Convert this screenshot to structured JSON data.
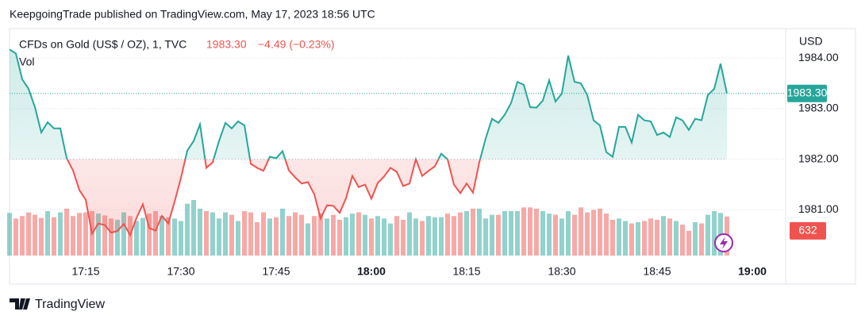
{
  "chart_data": {
    "type": "line",
    "header": "KeepgoingTrade published on TradingView.com, May 17, 2023 18:56 UTC",
    "symbol": "CFDs on Gold (US$ / OZ), 1, TVC",
    "price_label": "1983.30",
    "change_label": "−4.49 (−0.23%)",
    "volume_label": "Vol",
    "currency": "USD",
    "footer": "TradingView",
    "baseline": 1982,
    "up_color": "#26a69a",
    "down_color": "#ef5350",
    "xlim": [
      1023,
      1145.25
    ],
    "xticks": [
      {
        "value": 1035,
        "label": "17:15"
      },
      {
        "value": 1050,
        "label": "17:30"
      },
      {
        "value": 1065,
        "label": "17:45"
      },
      {
        "value": 1080,
        "label": "18:00",
        "bold": true
      },
      {
        "value": 1095,
        "label": "18:15"
      },
      {
        "value": 1110,
        "label": "18:30"
      },
      {
        "value": 1125,
        "label": "18:45"
      },
      {
        "value": 1140,
        "label": "19:00",
        "bold": true
      }
    ],
    "ylim": [
      1980.05,
      1984.52
    ],
    "yticks": [
      {
        "value": 1981,
        "label": "1981.00"
      },
      {
        "value": 1982,
        "label": "1982.00"
      },
      {
        "value": 1983,
        "label": "1983.00"
      },
      {
        "value": 1984,
        "label": "1984.00"
      }
    ],
    "x": [
      1023,
      1024,
      1025,
      1026,
      1027,
      1028,
      1029,
      1030,
      1031,
      1032,
      1033,
      1034,
      1035,
      1036,
      1037,
      1038,
      1039,
      1040,
      1041,
      1042,
      1043,
      1044,
      1045,
      1046,
      1047,
      1048,
      1049,
      1050,
      1051,
      1052,
      1053,
      1054,
      1055,
      1056,
      1057,
      1058,
      1059,
      1060,
      1061,
      1062,
      1063,
      1064,
      1065,
      1066,
      1067,
      1068,
      1069,
      1070,
      1071,
      1072,
      1073,
      1074,
      1075,
      1076,
      1077,
      1078,
      1079,
      1080,
      1081,
      1082,
      1083,
      1084,
      1085,
      1086,
      1087,
      1088,
      1089,
      1090,
      1091,
      1092,
      1093,
      1094,
      1095,
      1096,
      1097,
      1098,
      1099,
      1100,
      1101,
      1102,
      1103,
      1104,
      1105,
      1106,
      1107,
      1108,
      1109,
      1110,
      1111,
      1112,
      1113,
      1114,
      1115,
      1116,
      1117,
      1118,
      1119,
      1120,
      1121,
      1122,
      1123,
      1124,
      1125,
      1126,
      1127,
      1128,
      1129,
      1130,
      1131,
      1132,
      1133,
      1134,
      1135,
      1136
    ],
    "values": [
      1984.17,
      1984.09,
      1983.58,
      1983.39,
      1983.03,
      1982.53,
      1982.73,
      1982.61,
      1982.61,
      1982.02,
      1981.78,
      1981.39,
      1981.2,
      1980.53,
      1980.73,
      1980.7,
      1980.55,
      1980.58,
      1980.72,
      1980.5,
      1980.84,
      1981.11,
      1980.64,
      1980.59,
      1980.88,
      1980.73,
      1981.16,
      1981.63,
      1982.17,
      1982.36,
      1982.69,
      1981.83,
      1981.94,
      1982.36,
      1982.72,
      1982.61,
      1982.75,
      1982.67,
      1981.91,
      1981.83,
      1981.77,
      1982.05,
      1982.02,
      1982.16,
      1981.78,
      1981.64,
      1981.52,
      1981.55,
      1981.31,
      1980.83,
      1981.09,
      1981.08,
      1980.94,
      1981.23,
      1981.67,
      1981.45,
      1981.5,
      1981.22,
      1981.53,
      1981.66,
      1981.83,
      1981.75,
      1981.47,
      1981.52,
      1982.0,
      1981.67,
      1981.77,
      1981.86,
      1982.11,
      1982.0,
      1981.5,
      1981.33,
      1981.52,
      1981.34,
      1981.94,
      1982.41,
      1982.8,
      1982.72,
      1982.88,
      1983.11,
      1983.53,
      1983.47,
      1983.03,
      1983.02,
      1983.16,
      1983.56,
      1983.14,
      1983.3,
      1984.05,
      1983.53,
      1983.5,
      1983.27,
      1982.77,
      1982.67,
      1982.14,
      1982.05,
      1982.64,
      1982.64,
      1982.33,
      1982.88,
      1982.77,
      1982.75,
      1982.48,
      1982.53,
      1982.44,
      1982.83,
      1982.77,
      1982.58,
      1982.8,
      1982.77,
      1983.27,
      1983.39,
      1983.89,
      1983.3
    ],
    "volume": {
      "values": [
        690,
        600,
        640,
        700,
        660,
        610,
        720,
        620,
        700,
        760,
        640,
        690,
        700,
        720,
        680,
        650,
        600,
        580,
        700,
        640,
        560,
        610,
        680,
        720,
        640,
        620,
        600,
        560,
        840,
        900,
        760,
        720,
        700,
        600,
        700,
        660,
        560,
        720,
        700,
        540,
        700,
        600,
        620,
        760,
        640,
        700,
        660,
        520,
        640,
        680,
        600,
        660,
        580,
        620,
        680,
        700,
        660,
        600,
        640,
        600,
        520,
        640,
        580,
        700,
        600,
        560,
        640,
        620,
        620,
        680,
        640,
        700,
        720,
        760,
        760,
        600,
        660,
        660,
        720,
        720,
        720,
        780,
        780,
        760,
        720,
        680,
        660,
        600,
        720,
        660,
        780,
        700,
        740,
        760,
        680,
        580,
        600,
        560,
        520,
        540,
        560,
        600,
        580,
        640,
        600,
        560,
        500,
        400,
        540,
        520,
        660,
        720,
        690,
        632
      ]
    }
  }
}
